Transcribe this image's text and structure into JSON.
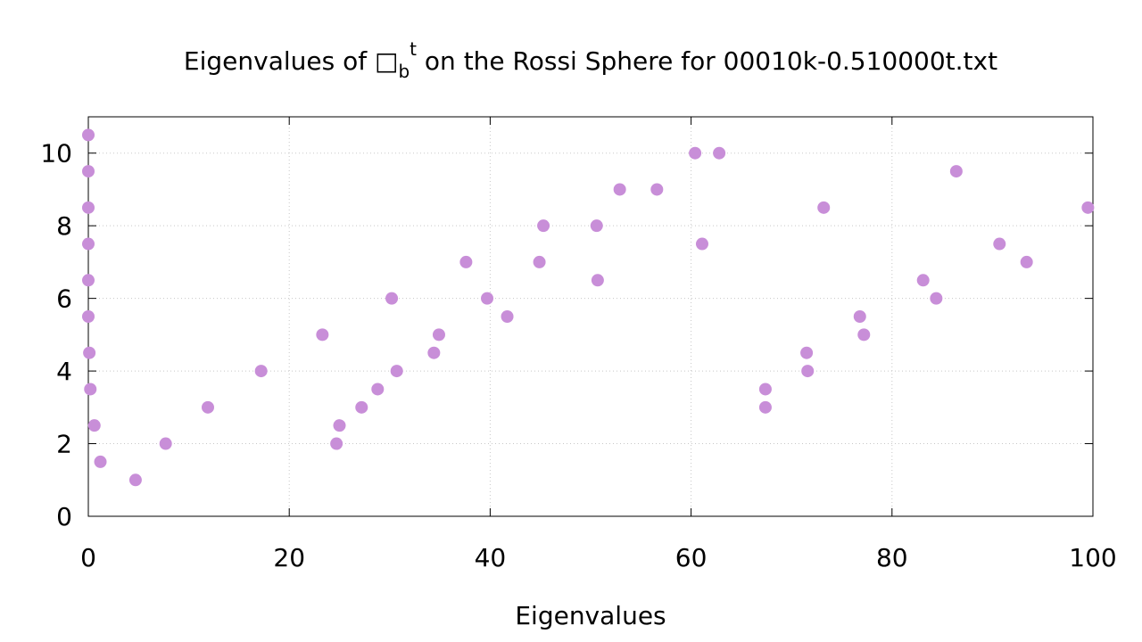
{
  "chart_data": {
    "type": "scatter",
    "title": {
      "prefix": "Eigenvalues of ",
      "symbol": "□",
      "subscript": "b",
      "superscript": "t",
      "suffix": " on the Rossi Sphere for 00010k-0.510000t.txt"
    },
    "xlabel": "Eigenvalues",
    "ylabel": "",
    "xlim": [
      0,
      100
    ],
    "ylim": [
      0,
      11
    ],
    "xticks": [
      0,
      20,
      40,
      60,
      80,
      100
    ],
    "yticks": [
      0,
      2,
      4,
      6,
      8,
      10
    ],
    "grid": true,
    "legend": "none",
    "marker_color": "#c88ed8",
    "series": [
      {
        "points": [
          [
            0.0,
            10.5
          ],
          [
            0.0,
            9.5
          ],
          [
            0.0,
            8.5
          ],
          [
            0.0,
            7.5
          ],
          [
            0.0,
            6.5
          ],
          [
            0.0,
            5.5
          ],
          [
            0.1,
            4.5
          ],
          [
            0.2,
            3.5
          ],
          [
            0.6,
            2.5
          ],
          [
            1.2,
            1.5
          ],
          [
            4.7,
            1.0
          ],
          [
            7.7,
            2.0
          ],
          [
            11.9,
            3.0
          ],
          [
            17.2,
            4.0
          ],
          [
            23.3,
            5.0
          ],
          [
            24.7,
            2.0
          ],
          [
            25.0,
            2.5
          ],
          [
            27.2,
            3.0
          ],
          [
            28.8,
            3.5
          ],
          [
            30.2,
            6.0
          ],
          [
            30.7,
            4.0
          ],
          [
            34.4,
            4.5
          ],
          [
            34.9,
            5.0
          ],
          [
            37.6,
            7.0
          ],
          [
            39.7,
            6.0
          ],
          [
            41.7,
            5.5
          ],
          [
            44.9,
            7.0
          ],
          [
            45.3,
            8.0
          ],
          [
            50.6,
            8.0
          ],
          [
            50.7,
            6.5
          ],
          [
            52.9,
            9.0
          ],
          [
            56.6,
            9.0
          ],
          [
            60.4,
            10.0
          ],
          [
            61.1,
            7.5
          ],
          [
            62.8,
            10.0
          ],
          [
            67.4,
            3.5
          ],
          [
            67.4,
            3.0
          ],
          [
            71.5,
            4.5
          ],
          [
            71.6,
            4.0
          ],
          [
            73.2,
            8.5
          ],
          [
            76.8,
            5.5
          ],
          [
            77.2,
            5.0
          ],
          [
            83.1,
            6.5
          ],
          [
            84.4,
            6.0
          ],
          [
            86.4,
            9.5
          ],
          [
            90.7,
            7.5
          ],
          [
            93.4,
            7.0
          ],
          [
            99.5,
            8.5
          ]
        ]
      }
    ]
  }
}
